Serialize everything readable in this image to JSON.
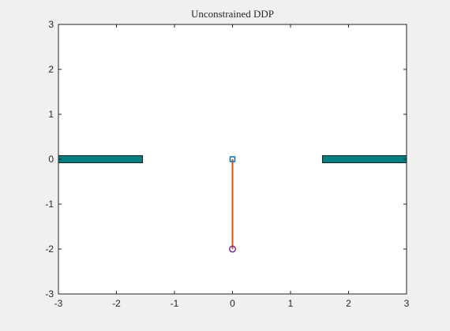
{
  "chart_data": {
    "type": "scatter",
    "title": "Unconstrained DDP",
    "xlim": [
      -3,
      3
    ],
    "ylim": [
      -3,
      3
    ],
    "xticks": [
      -3,
      -2,
      -1,
      0,
      1,
      2,
      3
    ],
    "yticks": [
      -3,
      -2,
      -1,
      0,
      1,
      2,
      3
    ],
    "xtick_labels": [
      "-3",
      "-2",
      "-1",
      "0",
      "1",
      "2",
      "3"
    ],
    "ytick_labels": [
      "-3",
      "-2",
      "-1",
      "0",
      "1",
      "2",
      "3"
    ],
    "grid": false,
    "obstacles": [
      {
        "x_range": [
          -3.0,
          -1.55
        ],
        "y_range": [
          -0.08,
          0.08
        ],
        "color": "#008080"
      },
      {
        "x_range": [
          1.55,
          3.0
        ],
        "y_range": [
          -0.08,
          0.08
        ],
        "color": "#008080"
      }
    ],
    "pendulum": {
      "pivot": {
        "x": 0,
        "y": 0,
        "marker": "square",
        "color": "#0072bd"
      },
      "bob": {
        "x": 0,
        "y": -2,
        "marker": "circle",
        "color": "#7e2f8e"
      },
      "rod_color": "#d95319"
    }
  },
  "colors": {
    "figure_background": "#f0f0f0",
    "axes_background": "#ffffff",
    "axis_color": "#262626"
  }
}
